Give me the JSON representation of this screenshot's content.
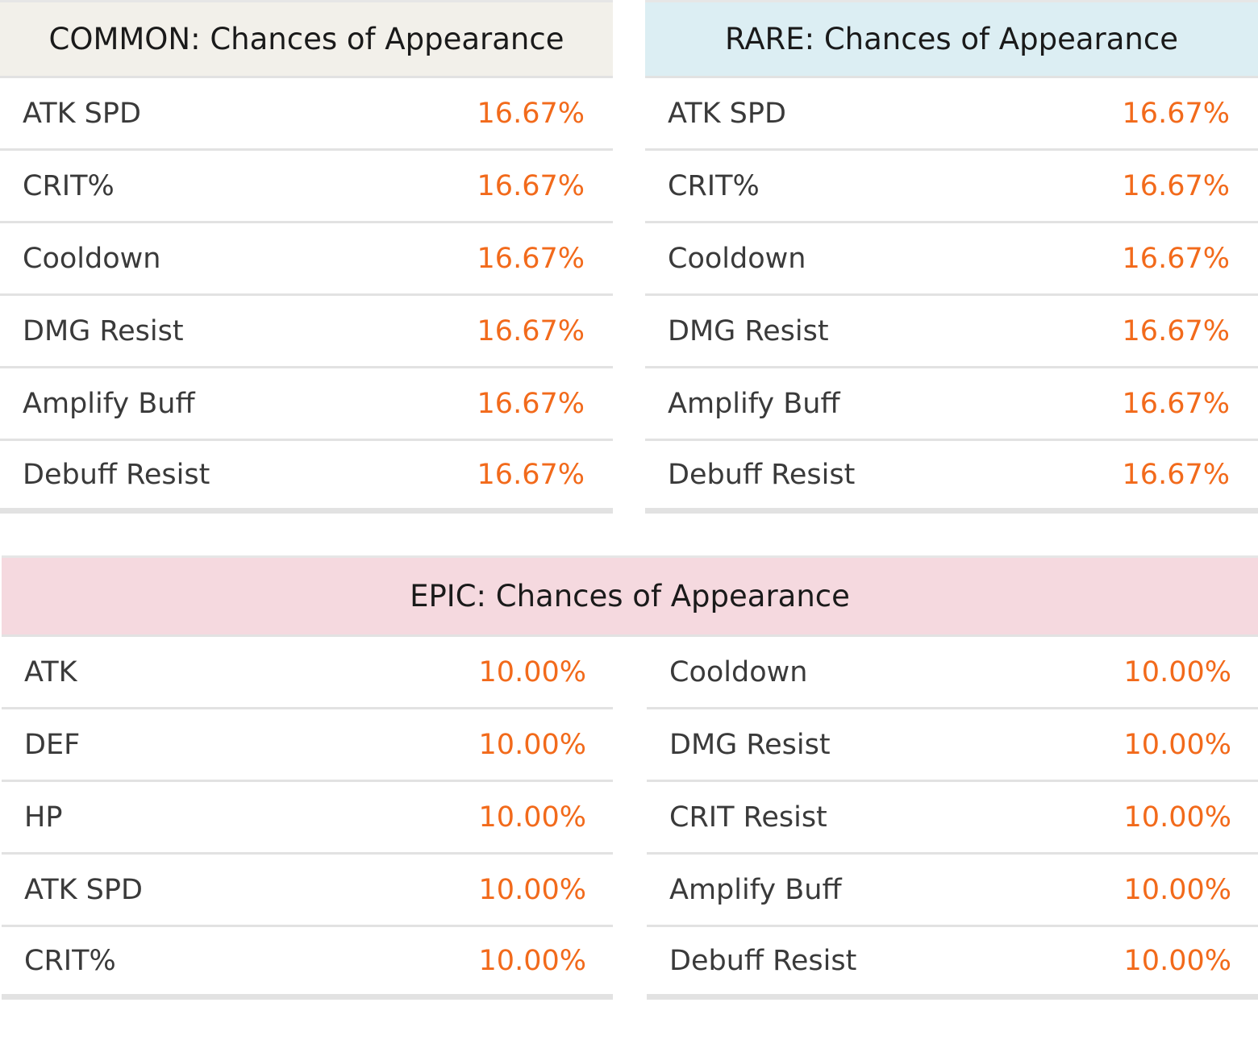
{
  "common": {
    "title": "COMMON: Chances of Appearance",
    "rows": [
      {
        "label": "ATK SPD",
        "value": "16.67%"
      },
      {
        "label": "CRIT%",
        "value": "16.67%"
      },
      {
        "label": "Cooldown",
        "value": "16.67%"
      },
      {
        "label": "DMG Resist",
        "value": "16.67%"
      },
      {
        "label": "Amplify Buff",
        "value": "16.67%"
      },
      {
        "label": "Debuff Resist",
        "value": "16.67%"
      }
    ]
  },
  "rare": {
    "title": "RARE: Chances of Appearance",
    "rows": [
      {
        "label": "ATK SPD",
        "value": "16.67%"
      },
      {
        "label": "CRIT%",
        "value": "16.67%"
      },
      {
        "label": "Cooldown",
        "value": "16.67%"
      },
      {
        "label": "DMG Resist",
        "value": "16.67%"
      },
      {
        "label": "Amplify Buff",
        "value": "16.67%"
      },
      {
        "label": "Debuff Resist",
        "value": "16.67%"
      }
    ]
  },
  "epic": {
    "title": "EPIC: Chances of Appearance",
    "left_rows": [
      {
        "label": "ATK",
        "value": "10.00%"
      },
      {
        "label": "DEF",
        "value": "10.00%"
      },
      {
        "label": "HP",
        "value": "10.00%"
      },
      {
        "label": "ATK SPD",
        "value": "10.00%"
      },
      {
        "label": "CRIT%",
        "value": "10.00%"
      }
    ],
    "right_rows": [
      {
        "label": "Cooldown",
        "value": "10.00%"
      },
      {
        "label": "DMG Resist",
        "value": "10.00%"
      },
      {
        "label": "CRIT Resist",
        "value": "10.00%"
      },
      {
        "label": "Amplify Buff",
        "value": "10.00%"
      },
      {
        "label": "Debuff Resist",
        "value": "10.00%"
      }
    ]
  },
  "colors": {
    "value_text": "#f26a1b",
    "common_header_bg": "#f2f0ea",
    "rare_header_bg": "#dceef3",
    "epic_header_bg": "#f5d9df"
  }
}
